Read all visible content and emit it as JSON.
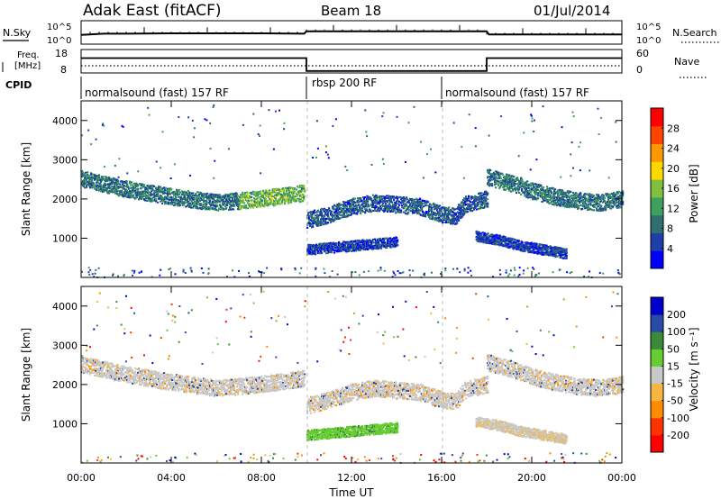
{
  "header": {
    "title": "Adak East (fitACF)",
    "beam": "Beam 18",
    "date": "01/Jul/2014"
  },
  "noise_panel": {
    "left_label": "N.Sky",
    "right_label": "N.Search",
    "left_ticks": [
      "10^5",
      "10^0"
    ],
    "right_ticks": [
      "10^5",
      "10^0"
    ]
  },
  "freq_panel": {
    "left_label_line1": "Freq.",
    "left_label_line2": "[MHz]",
    "right_label": "Nave",
    "left_ticks": [
      "18",
      "8"
    ],
    "right_ticks": [
      "60",
      "0"
    ]
  },
  "cpid": {
    "label": "CPID",
    "segments": [
      {
        "label": "normalsound (fast) 157 RF",
        "start": 0,
        "end": 10
      },
      {
        "label": "rbsp 200 RF",
        "start": 10,
        "end": 16
      },
      {
        "label": "normalsound (fast) 157 RF",
        "start": 16,
        "end": 24
      }
    ]
  },
  "power_panel": {
    "ylabel": "Slant Range [km]",
    "yticks": [
      "4000",
      "3000",
      "2000",
      "1000"
    ],
    "colorbar_label": "Power [dB]",
    "colorbar_ticks": [
      "28",
      "24",
      "20",
      "16",
      "12",
      "8",
      "4"
    ]
  },
  "velocity_panel": {
    "ylabel": "Slant Range [km]",
    "yticks": [
      "4000",
      "3000",
      "2000",
      "1000"
    ],
    "colorbar_label": "Velocity [m s⁻¹]",
    "colorbar_ticks": [
      "200",
      "100",
      "50",
      "15",
      "-15",
      "-50",
      "-100",
      "-200"
    ]
  },
  "xaxis": {
    "label": "Time UT",
    "ticks": [
      "00:00",
      "04:00",
      "08:00",
      "12:00",
      "16:00",
      "20:00",
      "00:00"
    ]
  },
  "colors": {
    "power_scale": [
      "#0000ff",
      "#1f3fa8",
      "#2f6f6f",
      "#3f9f5f",
      "#7fc03f",
      "#ffd800",
      "#ff9900",
      "#ff4400",
      "#ff0000"
    ],
    "velocity_scale": [
      "#0000cc",
      "#2a4aa8",
      "#3a8a3a",
      "#66cc33",
      "#c8c8c8",
      "#f5b642",
      "#ff8c00",
      "#ff3300",
      "#ff0000"
    ]
  },
  "chart_data": [
    {
      "type": "line",
      "title": "",
      "xlabel": "",
      "ylabel": "N.Sky",
      "xlim": [
        0,
        24
      ],
      "ylim": [
        0,
        5
      ],
      "y_scale": "log",
      "series": [
        {
          "name": "N.Sky",
          "x": [
            0,
            1,
            2,
            4,
            6,
            8,
            9.9,
            10.0,
            12,
            14,
            16,
            18,
            18.1,
            20,
            24
          ],
          "y": [
            2.1,
            2.4,
            2.4,
            2.5,
            2.5,
            2.5,
            2.4,
            3.0,
            3.0,
            3.0,
            3.0,
            3.0,
            2.2,
            2.2,
            2.2
          ]
        }
      ]
    },
    {
      "type": "line",
      "title": "",
      "xlabel": "",
      "ylabel": "Freq. [MHz]",
      "xlim": [
        0,
        24
      ],
      "ylim": [
        8,
        18
      ],
      "series": [
        {
          "name": "Freq.",
          "x": [
            0,
            10,
            10,
            18,
            18,
            24
          ],
          "y": [
            15.5,
            15.5,
            10,
            10,
            15.5,
            15.5
          ]
        }
      ]
    },
    {
      "type": "heatmap",
      "title": "",
      "xlabel": "Time UT",
      "ylabel": "Slant Range [km]",
      "xlim": [
        0,
        24
      ],
      "ylim": [
        0,
        4500
      ],
      "colorbar": {
        "label": "Power [dB]",
        "range": [
          0,
          30
        ]
      },
      "features": [
        {
          "x": [
            0,
            2,
            4,
            6,
            8,
            9.9
          ],
          "y": [
            2500,
            2250,
            2050,
            1900,
            2000,
            2150
          ],
          "value": 10
        },
        {
          "x": [
            10,
            11,
            12,
            13,
            14,
            15,
            16,
            16.6,
            17,
            18
          ],
          "y": [
            1450,
            1600,
            1800,
            1900,
            1850,
            1800,
            1600,
            1550,
            1850,
            2000
          ],
          "value": 8
        },
        {
          "x": [
            18,
            19,
            20,
            21,
            22,
            23,
            24
          ],
          "y": [
            2550,
            2400,
            2200,
            2050,
            1950,
            1900,
            2000
          ],
          "value": 10
        },
        {
          "x": [
            10,
            11,
            12,
            13,
            14
          ],
          "y": [
            700,
            750,
            800,
            850,
            900
          ],
          "value": 6
        },
        {
          "x": [
            17.5,
            18.5,
            19.5,
            20.5,
            21.5
          ],
          "y": [
            1050,
            950,
            800,
            700,
            600
          ],
          "value": 6
        }
      ]
    },
    {
      "type": "heatmap",
      "title": "",
      "xlabel": "Time UT",
      "ylabel": "Slant Range [km]",
      "xlim": [
        0,
        24
      ],
      "ylim": [
        0,
        4500
      ],
      "colorbar": {
        "label": "Velocity [m s⁻¹]",
        "range": [
          -250,
          250
        ]
      },
      "features": [
        {
          "x": [
            0,
            2,
            4,
            6,
            8,
            9.9
          ],
          "y": [
            2500,
            2250,
            2050,
            1900,
            2000,
            2150
          ],
          "value": 0
        },
        {
          "x": [
            10,
            11,
            12,
            13,
            14,
            15,
            16,
            16.6,
            17,
            18
          ],
          "y": [
            1450,
            1600,
            1800,
            1900,
            1850,
            1800,
            1600,
            1550,
            1850,
            2000
          ],
          "value": 0
        },
        {
          "x": [
            18,
            19,
            20,
            21,
            22,
            23,
            24
          ],
          "y": [
            2550,
            2400,
            2200,
            2050,
            1950,
            1900,
            2000
          ],
          "value": 0
        },
        {
          "x": [
            10,
            11,
            12,
            13,
            14
          ],
          "y": [
            700,
            750,
            800,
            850,
            900
          ],
          "value": 40
        },
        {
          "x": [
            17.5,
            18.5,
            19.5,
            20.5,
            21.5
          ],
          "y": [
            1050,
            950,
            800,
            700,
            600
          ],
          "value": -30
        }
      ]
    }
  ]
}
